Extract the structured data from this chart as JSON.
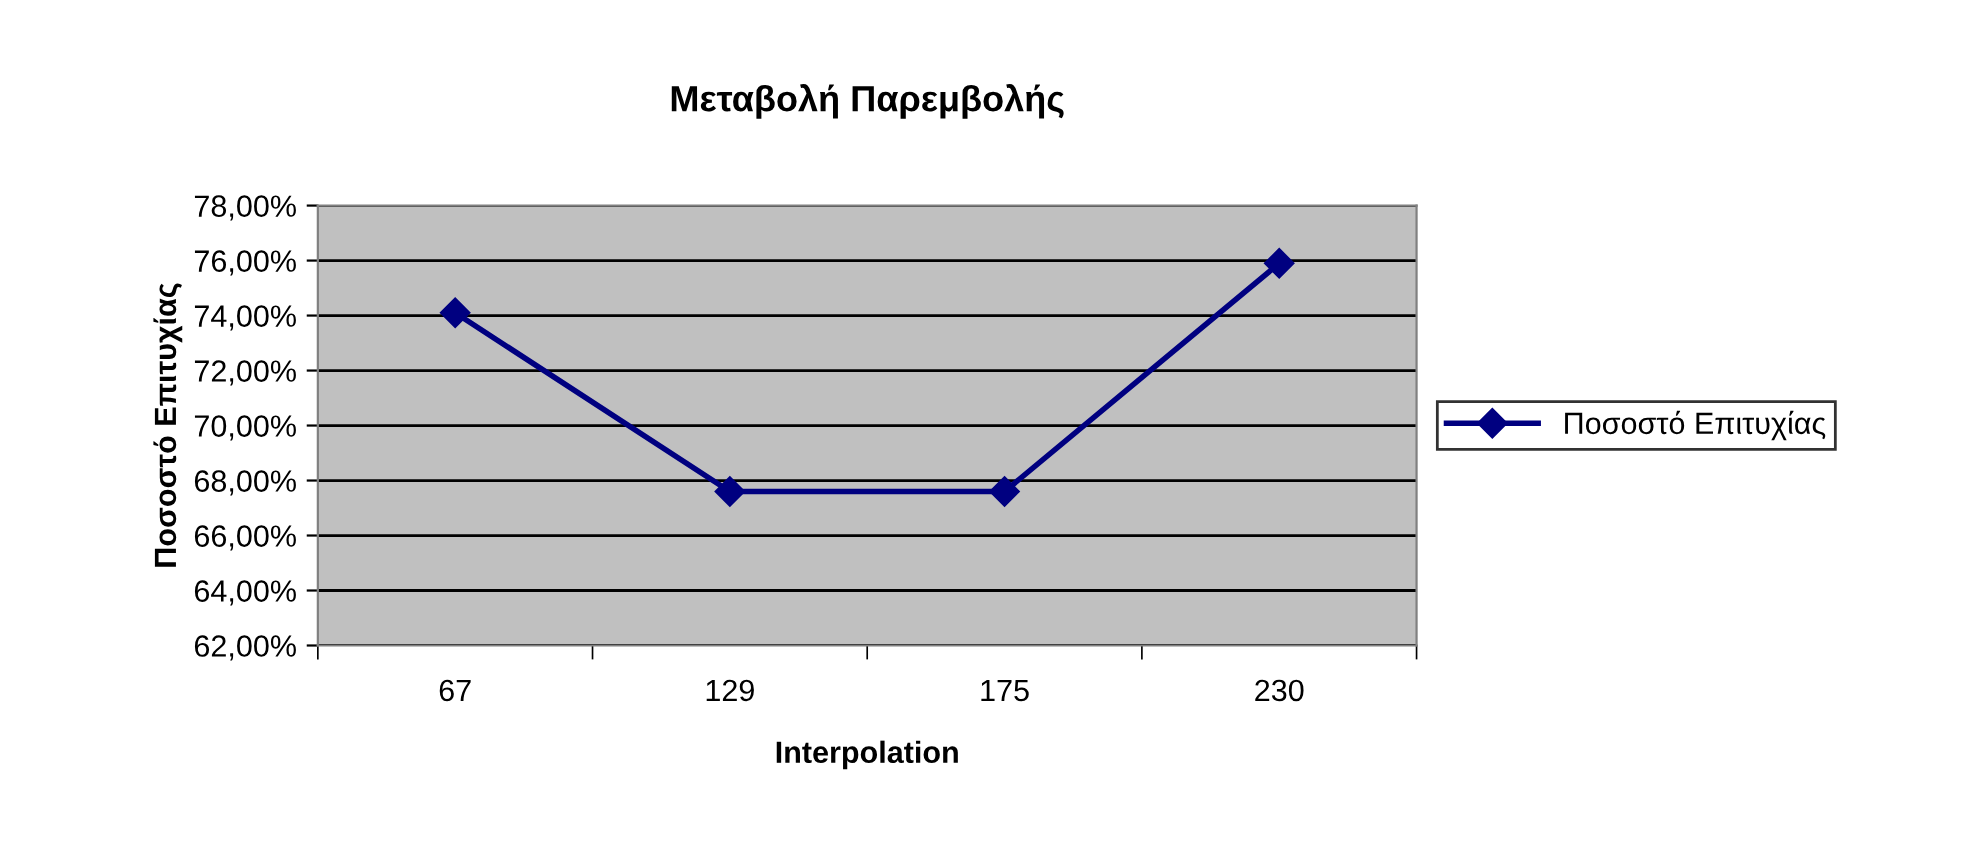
{
  "chart_data": {
    "type": "line",
    "title": "Μεταβολή Παρεμβολής",
    "xlabel": "Interpolation",
    "ylabel": "Ποσοστό Επιτυχίας",
    "categories": [
      "67",
      "129",
      "175",
      "230"
    ],
    "series": [
      {
        "name": "Ποσοστό Επιτυχίας",
        "color": "#000080",
        "values": [
          74.1,
          67.6,
          67.6,
          75.9
        ]
      }
    ],
    "ylim": [
      62,
      78
    ],
    "yticks": [
      {
        "value": 62,
        "label": "62,00%"
      },
      {
        "value": 64,
        "label": "64,00%"
      },
      {
        "value": 66,
        "label": "66,00%"
      },
      {
        "value": 68,
        "label": "68,00%"
      },
      {
        "value": 70,
        "label": "70,00%"
      },
      {
        "value": 72,
        "label": "72,00%"
      },
      {
        "value": 74,
        "label": "74,00%"
      },
      {
        "value": 76,
        "label": "76,00%"
      },
      {
        "value": 78,
        "label": "78,00%"
      }
    ],
    "grid": "y",
    "legend": "right",
    "marker": "diamond",
    "line_style": "solid"
  }
}
